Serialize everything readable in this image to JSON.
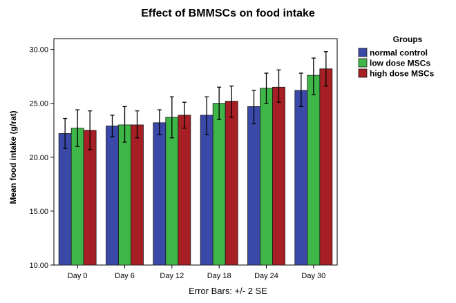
{
  "chart_data": {
    "type": "bar",
    "title": "Effect of BMMSCs on food intake",
    "xlabel": "",
    "ylabel": "Mean food intake (g/rat)",
    "ylim": [
      10,
      31
    ],
    "yticks": [
      "10.00",
      "15.00",
      "20.00",
      "25.00",
      "30.00"
    ],
    "categories": [
      "Day 0",
      "Day 6",
      "Day 12",
      "Day 18",
      "Day 24",
      "Day 30"
    ],
    "legend_title": "Groups",
    "legend_position": "right",
    "grid": false,
    "footnote": "Error Bars: +/- 2 SE",
    "series": [
      {
        "name": "normal control",
        "color": "#3a48a8",
        "values": [
          22.2,
          22.9,
          23.2,
          23.9,
          24.7,
          26.2
        ],
        "error_low": [
          20.8,
          21.9,
          22.1,
          22.1,
          23.1,
          24.7
        ],
        "error_high": [
          23.6,
          23.9,
          24.4,
          25.6,
          26.2,
          27.8
        ]
      },
      {
        "name": "low dose MSCs",
        "color": "#3fb648",
        "values": [
          22.7,
          23.0,
          23.7,
          25.0,
          26.4,
          27.6
        ],
        "error_low": [
          21.0,
          21.4,
          21.8,
          23.5,
          25.0,
          25.8
        ],
        "error_high": [
          24.4,
          24.7,
          25.6,
          26.5,
          27.8,
          29.2
        ]
      },
      {
        "name": "high dose MSCs",
        "color": "#a51f24",
        "values": [
          22.5,
          23.0,
          23.9,
          25.2,
          26.5,
          28.2
        ],
        "error_low": [
          20.7,
          21.8,
          22.7,
          23.7,
          25.1,
          26.6
        ],
        "error_high": [
          24.3,
          24.3,
          25.1,
          26.6,
          28.1,
          29.8
        ]
      }
    ]
  }
}
